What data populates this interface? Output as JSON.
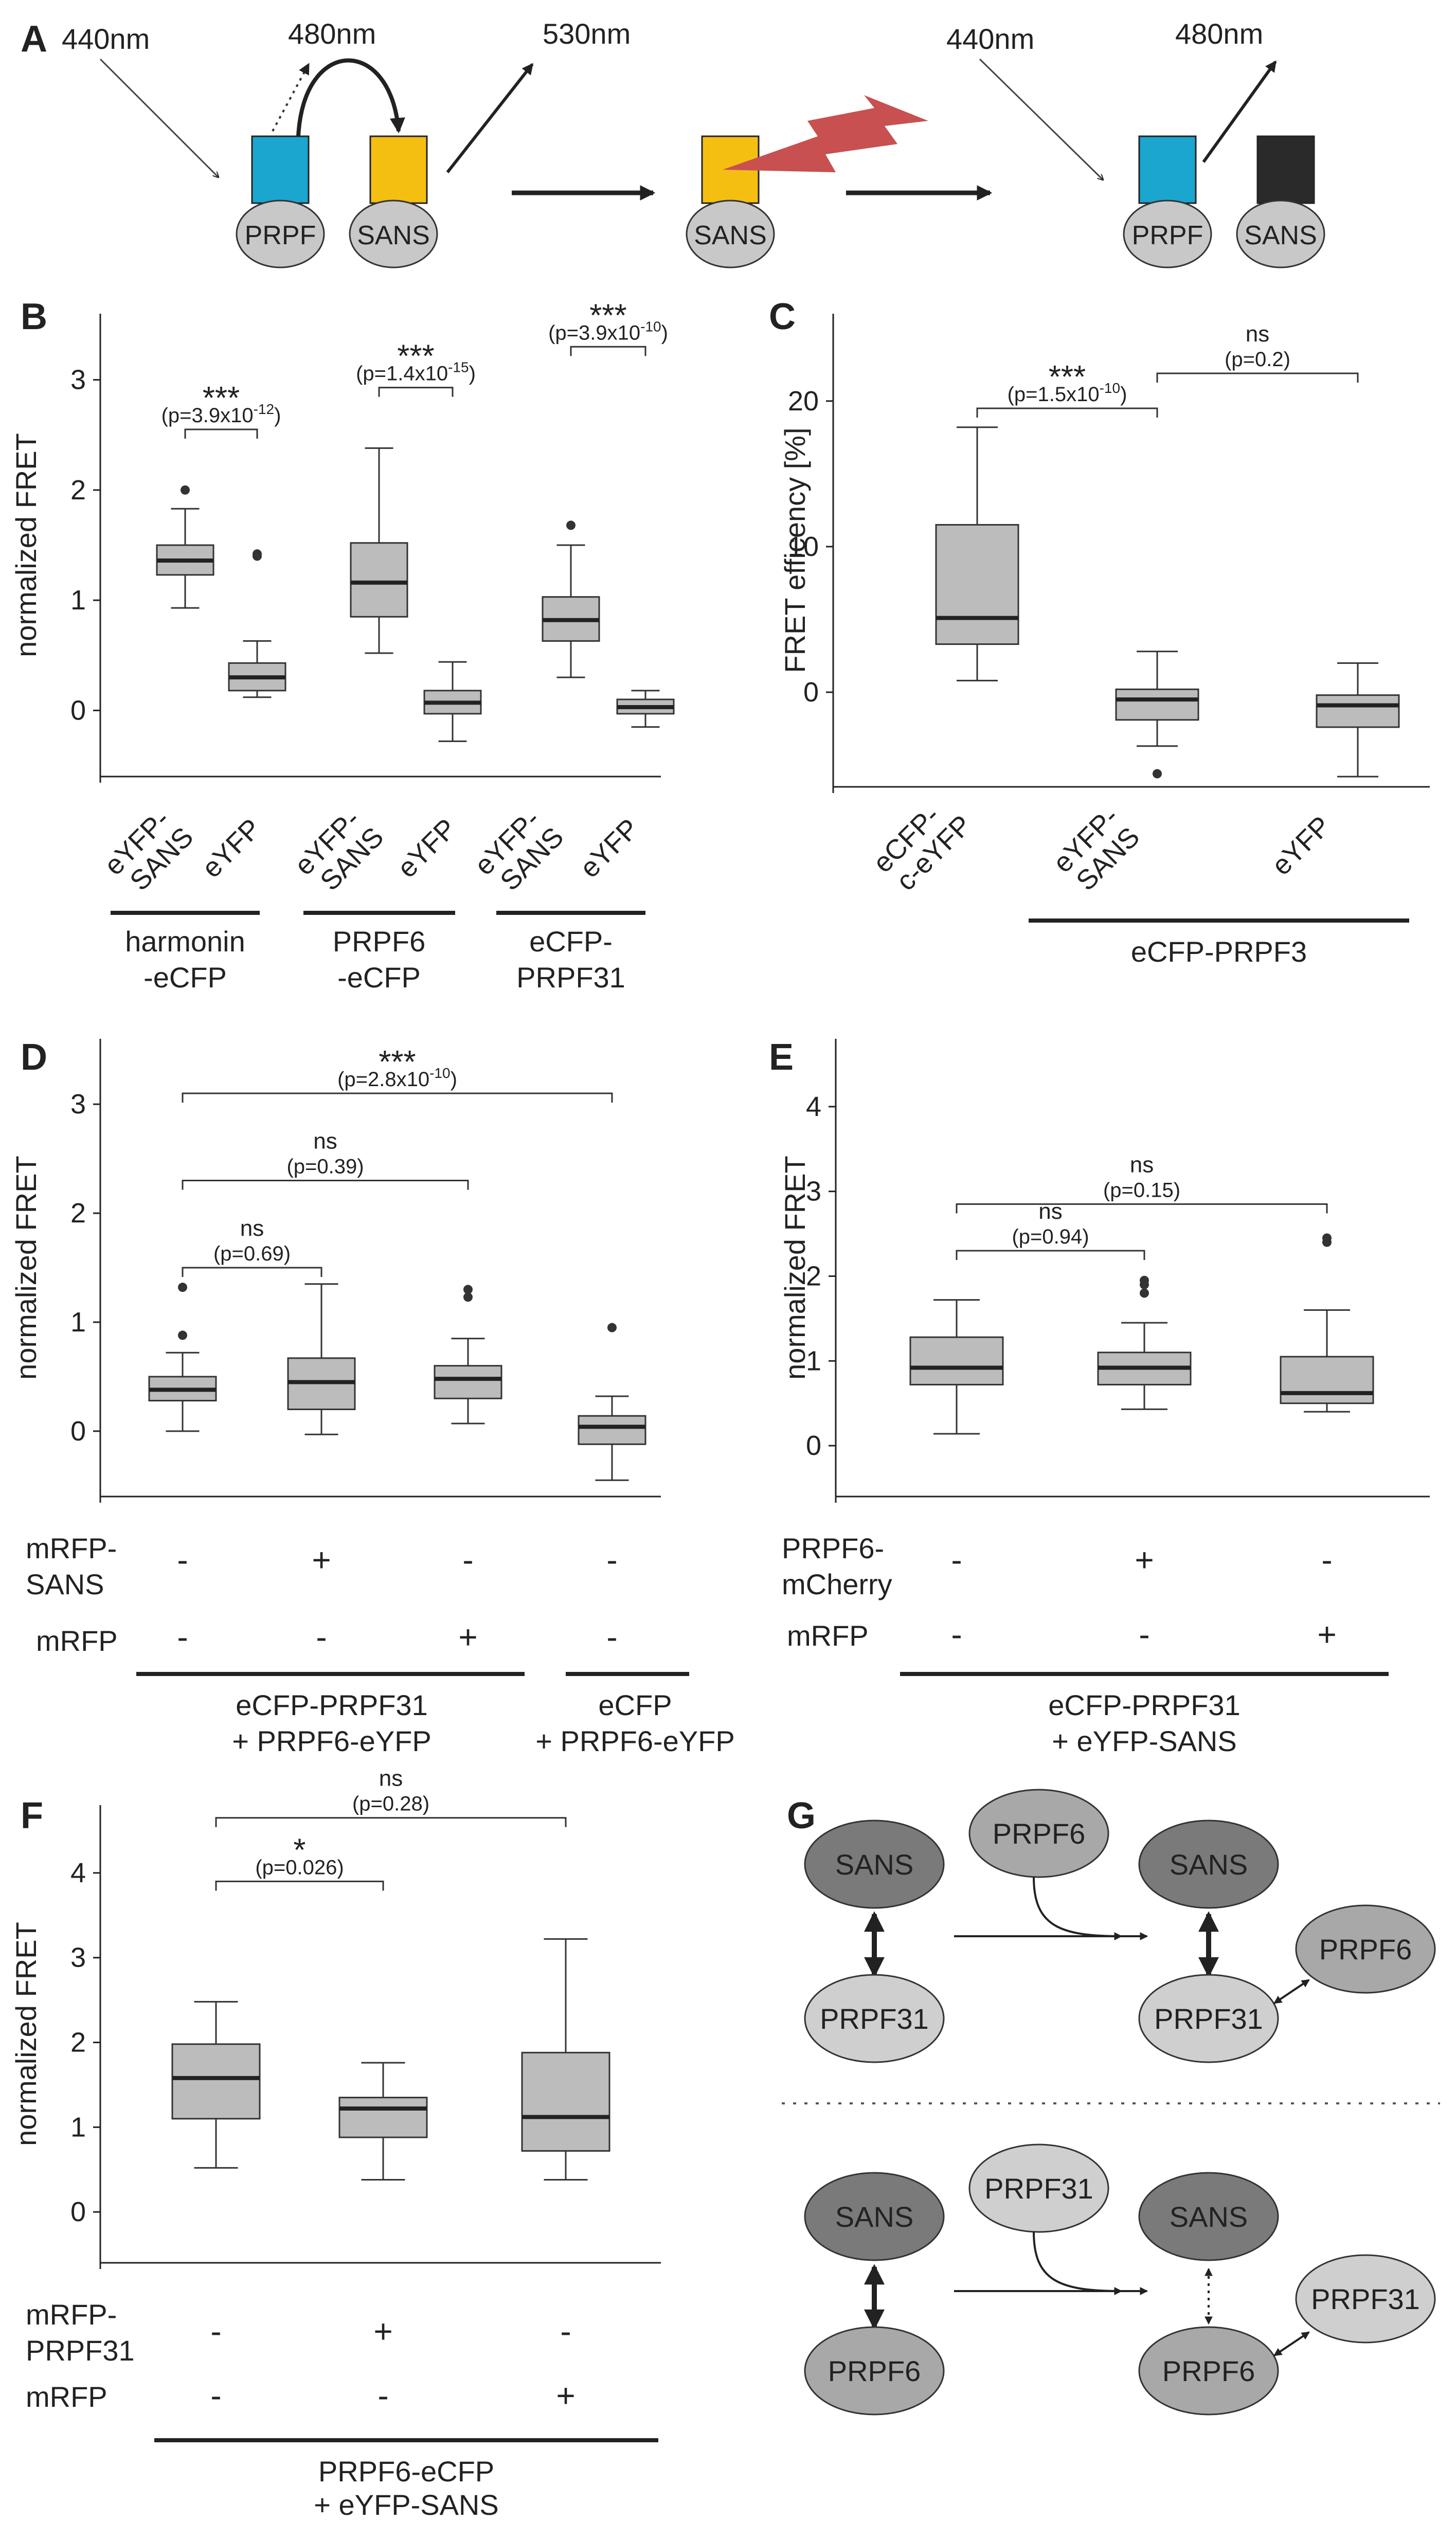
{
  "panel_labels": {
    "A": "A",
    "B": "B",
    "C": "C",
    "D": "D",
    "E": "E",
    "F": "F",
    "G": "G"
  },
  "panelA": {
    "wavelengths": {
      "ex1": "440nm",
      "cfp_em": "480nm",
      "yfp_em": "530nm",
      "ex2": "440nm",
      "cfp_em2": "480nm"
    },
    "labels": {
      "prpf": "PRPF",
      "sans": "SANS"
    },
    "colors": {
      "cfp": "#1aa6cf",
      "yfp": "#f5bf12",
      "bleached": "#2a2a2a",
      "laser": "#c85050",
      "oval": "#c8c8c8"
    }
  },
  "panelB": {
    "ylabel": "normalized FRET",
    "ticks": [
      "0",
      "1",
      "2",
      "3"
    ],
    "xlabels": [
      [
        "eYFP-",
        "SANS"
      ],
      [
        "eYFP"
      ],
      [
        "eYFP-",
        "SANS"
      ],
      [
        "eYFP"
      ],
      [
        "eYFP-",
        "SANS"
      ],
      [
        "eYFP"
      ]
    ],
    "groups": [
      [
        "harmonin",
        "-eCFP"
      ],
      [
        "PRPF6",
        "-eCFP"
      ],
      [
        "eCFP-",
        "PRPF31"
      ]
    ],
    "sig": [
      {
        "stars": "***",
        "p": "(p=3.9x10",
        "exp": "-12",
        "close": ")"
      },
      {
        "stars": "***",
        "p": "(p=1.4x10",
        "exp": "-15",
        "close": ")"
      },
      {
        "stars": "***",
        "p": "(p=3.9x10",
        "exp": "-10",
        "close": ")"
      }
    ]
  },
  "panelC": {
    "ylabel": "FRET efficency [%]",
    "ticks": [
      "0",
      "10",
      "20"
    ],
    "xlabels": [
      [
        "eCFP-",
        "c-eYFP"
      ],
      [
        "eYFP-",
        "SANS"
      ],
      [
        "eYFP"
      ]
    ],
    "group": "eCFP-PRPF3",
    "sig": [
      {
        "stars": "***",
        "p": "(p=1.5x10",
        "exp": "-10",
        "close": ")"
      },
      {
        "stars": "ns",
        "p": "(p=0.2)",
        "exp": "",
        "close": ""
      }
    ]
  },
  "panelD": {
    "ylabel": "normalized FRET",
    "ticks": [
      "0",
      "1",
      "2",
      "3"
    ],
    "rows": [
      {
        "label": [
          "mRFP-",
          "SANS"
        ],
        "vals": [
          "-",
          "+",
          "-",
          "-"
        ]
      },
      {
        "label": [
          "mRFP"
        ],
        "vals": [
          "-",
          "-",
          "+",
          "-"
        ]
      }
    ],
    "groups": [
      [
        "eCFP-PRPF31",
        "+ PRPF6-eYFP"
      ],
      [
        "eCFP",
        "+ PRPF6-eYFP"
      ]
    ],
    "sig": [
      {
        "stars": "***",
        "p": "(p=2.8x10",
        "exp": "-10",
        "close": ")"
      },
      {
        "stars": "ns",
        "p": "(p=0.39)",
        "exp": "",
        "close": ""
      },
      {
        "stars": "ns",
        "p": "(p=0.69)",
        "exp": "",
        "close": ""
      }
    ]
  },
  "panelE": {
    "ylabel": "normalized FRET",
    "ticks": [
      "0",
      "1",
      "2",
      "3",
      "4"
    ],
    "rows": [
      {
        "label": [
          "PRPF6-",
          "mCherry"
        ],
        "vals": [
          "-",
          "+",
          "-"
        ]
      },
      {
        "label": [
          "mRFP"
        ],
        "vals": [
          "-",
          "-",
          "+"
        ]
      }
    ],
    "group": [
      "eCFP-PRPF31",
      "+ eYFP-SANS"
    ],
    "sig": [
      {
        "stars": "ns",
        "p": "(p=0.15)",
        "exp": "",
        "close": ""
      },
      {
        "stars": "ns",
        "p": "(p=0.94)",
        "exp": "",
        "close": ""
      }
    ]
  },
  "panelF": {
    "ylabel": "normalized FRET",
    "ticks": [
      "0",
      "1",
      "2",
      "3",
      "4"
    ],
    "rows": [
      {
        "label": [
          "mRFP-",
          "PRPF31"
        ],
        "vals": [
          "-",
          "+",
          "-"
        ]
      },
      {
        "label": [
          "mRFP"
        ],
        "vals": [
          "-",
          "-",
          "+"
        ]
      }
    ],
    "group": [
      "PRPF6-eCFP",
      "+ eYFP-SANS"
    ],
    "sig": [
      {
        "stars": "ns",
        "p": "(p=0.28)",
        "exp": "",
        "close": ""
      },
      {
        "stars": "*",
        "p": "(p=0.026)",
        "exp": "",
        "close": ""
      }
    ]
  },
  "panelG": {
    "top": {
      "sans": "SANS",
      "partner": "PRPF31",
      "added": "PRPF6"
    },
    "bottom": {
      "sans": "SANS",
      "partner": "PRPF6",
      "added": "PRPF31"
    },
    "colors": {
      "dark": "#7a7a7a",
      "mid": "#a8a8a8",
      "light": "#cfcfcf"
    }
  },
  "chart_data": [
    {
      "panel": "B",
      "type": "box",
      "ylabel": "normalized FRET",
      "ylim": [
        -0.6,
        3.6
      ],
      "categories": [
        "eYFP-SANS",
        "eYFP",
        "eYFP-SANS",
        "eYFP",
        "eYFP-SANS",
        "eYFP"
      ],
      "groups": [
        "harmonin-eCFP",
        "PRPF6-eCFP",
        "eCFP-PRPF31"
      ],
      "boxes": [
        {
          "min": 0.93,
          "q1": 1.23,
          "median": 1.36,
          "q3": 1.5,
          "max": 1.83,
          "outliers": [
            2.0
          ]
        },
        {
          "min": 0.12,
          "q1": 0.18,
          "median": 0.3,
          "q3": 0.43,
          "max": 0.63,
          "outliers": [
            1.4,
            1.42
          ]
        },
        {
          "min": 0.52,
          "q1": 0.85,
          "median": 1.16,
          "q3": 1.52,
          "max": 2.38,
          "outliers": []
        },
        {
          "min": -0.28,
          "q1": -0.03,
          "median": 0.07,
          "q3": 0.18,
          "max": 0.44,
          "outliers": []
        },
        {
          "min": 0.3,
          "q1": 0.63,
          "median": 0.82,
          "q3": 1.03,
          "max": 1.5,
          "outliers": [
            1.68
          ]
        },
        {
          "min": -0.15,
          "q1": -0.03,
          "median": 0.03,
          "q3": 0.1,
          "max": 0.18,
          "outliers": []
        }
      ]
    },
    {
      "panel": "C",
      "type": "box",
      "ylabel": "FRET efficency [%]",
      "ylim": [
        -6.5,
        26
      ],
      "categories": [
        "eCFP-c-eYFP",
        "eYFP-SANS",
        "eYFP"
      ],
      "boxes": [
        {
          "min": 0.8,
          "q1": 3.3,
          "median": 5.1,
          "q3": 11.5,
          "max": 18.2,
          "outliers": []
        },
        {
          "min": -3.7,
          "q1": -1.9,
          "median": -0.5,
          "q3": 0.2,
          "max": 2.8,
          "outliers": [
            -5.6
          ]
        },
        {
          "min": -5.8,
          "q1": -2.4,
          "median": -0.9,
          "q3": -0.2,
          "max": 2.0,
          "outliers": []
        }
      ]
    },
    {
      "panel": "D",
      "type": "box",
      "ylabel": "normalized FRET",
      "ylim": [
        -0.6,
        3.6
      ],
      "categories": [
        "mRFP-SANS -, mRFP -",
        "mRFP-SANS +, mRFP -",
        "mRFP-SANS -, mRFP +",
        "eCFP control"
      ],
      "boxes": [
        {
          "min": 0.0,
          "q1": 0.28,
          "median": 0.38,
          "q3": 0.5,
          "max": 0.72,
          "outliers": [
            0.88,
            1.32
          ]
        },
        {
          "min": -0.03,
          "q1": 0.2,
          "median": 0.45,
          "q3": 0.67,
          "max": 1.35,
          "outliers": []
        },
        {
          "min": 0.07,
          "q1": 0.3,
          "median": 0.48,
          "q3": 0.6,
          "max": 0.85,
          "outliers": [
            1.23,
            1.3
          ]
        },
        {
          "min": -0.45,
          "q1": -0.12,
          "median": 0.04,
          "q3": 0.14,
          "max": 0.32,
          "outliers": [
            0.95
          ]
        }
      ]
    },
    {
      "panel": "E",
      "type": "box",
      "ylabel": "normalized FRET",
      "ylim": [
        -0.6,
        4.8
      ],
      "categories": [
        "PRPF6-mCherry -, mRFP -",
        "PRPF6-mCherry +, mRFP -",
        "PRPF6-mCherry -, mRFP +"
      ],
      "boxes": [
        {
          "min": 0.14,
          "q1": 0.72,
          "median": 0.92,
          "q3": 1.28,
          "max": 1.72,
          "outliers": []
        },
        {
          "min": 0.43,
          "q1": 0.72,
          "median": 0.92,
          "q3": 1.1,
          "max": 1.45,
          "outliers": [
            1.8,
            1.9,
            1.95
          ]
        },
        {
          "min": 0.4,
          "q1": 0.5,
          "median": 0.62,
          "q3": 1.05,
          "max": 1.6,
          "outliers": [
            2.4,
            2.45
          ]
        }
      ]
    },
    {
      "panel": "F",
      "type": "box",
      "ylabel": "normalized FRET",
      "ylim": [
        -0.6,
        4.8
      ],
      "categories": [
        "mRFP-PRPF31 -, mRFP -",
        "mRFP-PRPF31 +, mRFP -",
        "mRFP-PRPF31 -, mRFP +"
      ],
      "boxes": [
        {
          "min": 0.52,
          "q1": 1.1,
          "median": 1.58,
          "q3": 1.98,
          "max": 2.48,
          "outliers": []
        },
        {
          "min": 0.38,
          "q1": 0.88,
          "median": 1.22,
          "q3": 1.35,
          "max": 1.76,
          "outliers": []
        },
        {
          "min": 0.38,
          "q1": 0.72,
          "median": 1.12,
          "q3": 1.88,
          "max": 3.22,
          "outliers": []
        }
      ]
    }
  ]
}
